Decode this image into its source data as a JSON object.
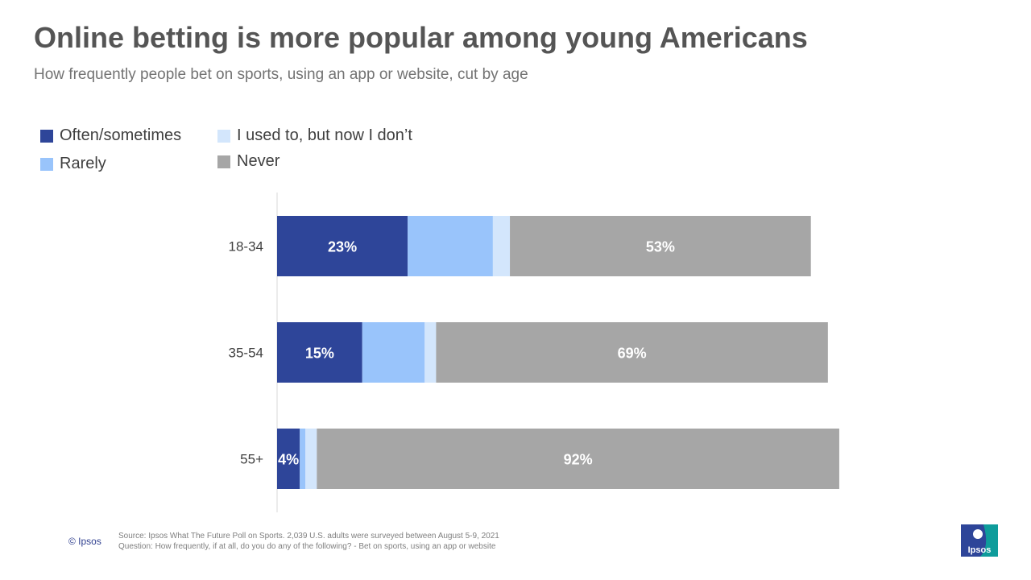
{
  "title": "Online betting is more popular among young Americans",
  "subtitle": "How frequently people bet on sports, using an app or website, cut by age",
  "colors": {
    "often": "#2e4599",
    "rarely": "#99c4fb",
    "used_to": "#d3e6fc",
    "never": "#a6a6a6",
    "text": "#555555"
  },
  "legend": [
    {
      "label": "Often/sometimes",
      "color": "#2e4599"
    },
    {
      "label": "I used to, but now I don’t",
      "color": "#d3e6fc"
    },
    {
      "label": "Rarely",
      "color": "#99c4fb"
    },
    {
      "label": "Never",
      "color": "#a6a6a6"
    }
  ],
  "chart_data": {
    "type": "bar",
    "orientation": "horizontal",
    "stacked": true,
    "categories": [
      "18-34",
      "35-54",
      "55+"
    ],
    "series": [
      {
        "name": "Often/sometimes",
        "values": [
          23,
          15,
          4
        ],
        "labels": [
          "23%",
          "15%",
          "4%"
        ]
      },
      {
        "name": "Rarely",
        "values": [
          15,
          11,
          1
        ],
        "labels": [
          "",
          "",
          ""
        ]
      },
      {
        "name": "I used to, but now I don’t",
        "values": [
          3,
          2,
          2
        ],
        "labels": [
          "",
          "",
          ""
        ]
      },
      {
        "name": "Never",
        "values": [
          53,
          69,
          92
        ],
        "labels": [
          "53%",
          "69%",
          "92%"
        ]
      }
    ],
    "xlim": [
      0,
      100
    ],
    "legend_position": "top-left",
    "grid": false
  },
  "footer": {
    "copyright": "© Ipsos",
    "source": "Source: Ipsos What The Future Poll on Sports. 2,039 U.S. adults were surveyed between August 5-9, 2021",
    "question": "Question: How frequently, if at all, do you do any of the following? - Bet on sports, using an app or website",
    "logo_text": "Ipsos"
  }
}
